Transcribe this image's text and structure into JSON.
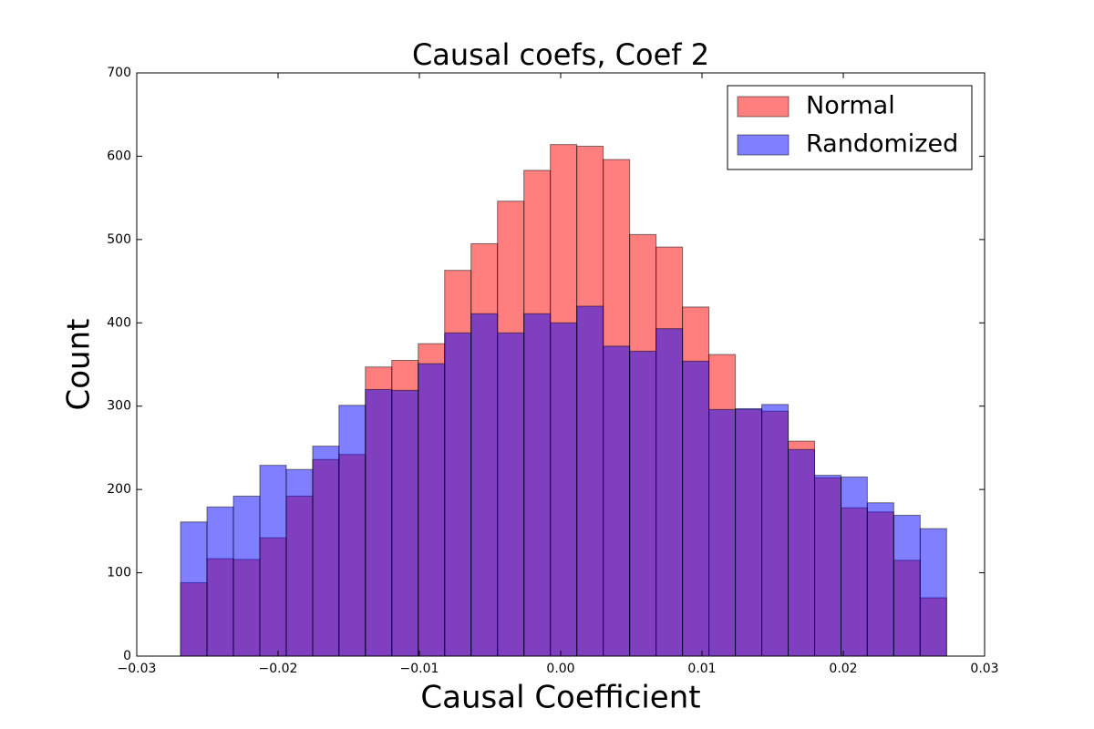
{
  "chart_data": {
    "type": "histogram",
    "title": "Causal coefs, Coef 2",
    "x_label": "Causal Coefficient",
    "y_label": "Count",
    "bins": [
      -0.0269,
      -0.02503,
      -0.02316,
      -0.02129,
      -0.01942,
      -0.01755,
      -0.01569,
      -0.01382,
      -0.01195,
      -0.01008,
      -0.00821,
      -0.00634,
      -0.00447,
      -0.0026,
      -0.00073,
      0.00114,
      0.00301,
      0.00488,
      0.00675,
      0.00862,
      0.01049,
      0.01236,
      0.01423,
      0.0161,
      0.01797,
      0.01984,
      0.0217,
      0.02357,
      0.02544,
      0.02731
    ],
    "series": [
      {
        "name": "Normal",
        "color": "#ff0000",
        "values": [
          88,
          117,
          116,
          142,
          192,
          236,
          242,
          347,
          355,
          375,
          463,
          495,
          546,
          583,
          614,
          612,
          596,
          506,
          491,
          419,
          362,
          296,
          294,
          258,
          214,
          178,
          173,
          115,
          70
        ]
      },
      {
        "name": "Randomized",
        "color": "#0000ff",
        "values": [
          161,
          179,
          192,
          229,
          224,
          252,
          301,
          320,
          319,
          351,
          388,
          411,
          388,
          411,
          400,
          420,
          372,
          366,
          393,
          354,
          296,
          297,
          302,
          248,
          217,
          215,
          184,
          169,
          153
        ]
      }
    ],
    "opacity": 0.5,
    "xlim": [
      -0.03,
      0.03
    ],
    "xticks": [
      {
        "value": -0.03,
        "label": "−0.03"
      },
      {
        "value": -0.02,
        "label": "−0.02"
      },
      {
        "value": -0.01,
        "label": "−0.01"
      },
      {
        "value": 0,
        "label": "0.00"
      },
      {
        "value": 0.01,
        "label": "0.01"
      },
      {
        "value": 0.02,
        "label": "0.02"
      },
      {
        "value": 0.03,
        "label": "0.03"
      }
    ],
    "ylim": [
      0,
      700
    ],
    "yticks": [
      0,
      100,
      200,
      300,
      400,
      500,
      600,
      700
    ],
    "legend": "upper right"
  }
}
